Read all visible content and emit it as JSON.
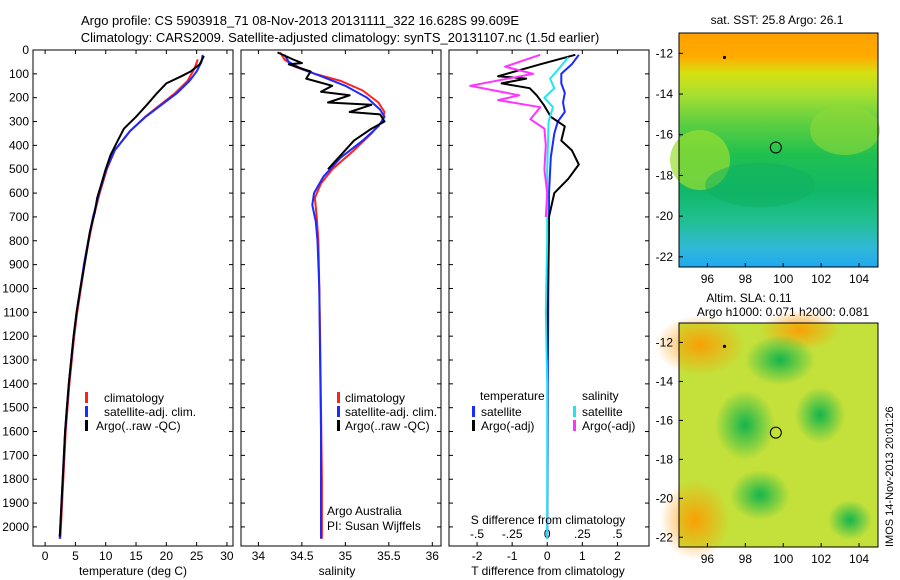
{
  "header": {
    "title_line1": "Argo profile: CS 5903918_71 08-Nov-2013 20131111_322 16.628S 99.609E",
    "title_line2": "Climatology: CARS2009. Satellite-adjusted climatology: synTS_20131107.nc (1.5d earlier)"
  },
  "colors": {
    "climatology": "#ff2020",
    "satellite_adj": "#1a2bff",
    "argo": "#000000",
    "satellite_salinity": "#20e6ef",
    "argo_salinity_adj": "#ff33ff"
  },
  "chart_data": [
    {
      "type": "line",
      "id": "temperature",
      "xlabel": "temperature (deg C)",
      "ylabel": "",
      "xlim": [
        -2,
        31
      ],
      "ylim": [
        2080,
        0
      ],
      "x_ticks": [
        0,
        5,
        10,
        15,
        20,
        25,
        30
      ],
      "y_ticks": [
        0,
        100,
        200,
        300,
        400,
        500,
        600,
        700,
        800,
        900,
        1000,
        1100,
        1200,
        1300,
        1400,
        1500,
        1600,
        1700,
        1800,
        1900,
        2000
      ],
      "legend": [
        "climatology",
        "satellite-adj. clim.",
        "Argo(..raw -QC)"
      ],
      "series": [
        {
          "name": "climatology",
          "color": "#ff2020",
          "points": [
            [
              25.2,
              40
            ],
            [
              24.6,
              80
            ],
            [
              23.5,
              130
            ],
            [
              21.5,
              180
            ],
            [
              19,
              230
            ],
            [
              16.5,
              280
            ],
            [
              14,
              340
            ],
            [
              11.5,
              420
            ],
            [
              10.2,
              500
            ],
            [
              9,
              600
            ],
            [
              8,
              700
            ],
            [
              7.2,
              800
            ],
            [
              6.5,
              900
            ],
            [
              5.9,
              1000
            ],
            [
              5.3,
              1100
            ],
            [
              4.8,
              1200
            ],
            [
              4.4,
              1300
            ],
            [
              4,
              1400
            ],
            [
              3.7,
              1500
            ],
            [
              3.4,
              1600
            ],
            [
              3.2,
              1700
            ],
            [
              3,
              1800
            ],
            [
              2.8,
              1900
            ],
            [
              2.6,
              2000
            ],
            [
              2.5,
              2050
            ]
          ]
        },
        {
          "name": "satellite-adj. clim.",
          "color": "#1a2bff",
          "points": [
            [
              26,
              20
            ],
            [
              25.8,
              50
            ],
            [
              25,
              90
            ],
            [
              23.8,
              130
            ],
            [
              21.8,
              180
            ],
            [
              19.2,
              230
            ],
            [
              16.6,
              280
            ],
            [
              14,
              340
            ],
            [
              11.5,
              420
            ],
            [
              10.1,
              500
            ],
            [
              8.9,
              600
            ],
            [
              7.9,
              700
            ],
            [
              7.1,
              800
            ],
            [
              6.4,
              900
            ],
            [
              5.8,
              1000
            ],
            [
              5.2,
              1100
            ],
            [
              4.7,
              1200
            ],
            [
              4.3,
              1300
            ],
            [
              3.9,
              1400
            ],
            [
              3.6,
              1500
            ],
            [
              3.3,
              1600
            ],
            [
              3.1,
              1700
            ],
            [
              2.9,
              1800
            ],
            [
              2.7,
              1900
            ],
            [
              2.5,
              2000
            ],
            [
              2.4,
              2050
            ]
          ]
        },
        {
          "name": "Argo(..raw -QC)",
          "color": "#000000",
          "points": [
            [
              26.2,
              25
            ],
            [
              25.5,
              60
            ],
            [
              24,
              90
            ],
            [
              22.5,
              110
            ],
            [
              20,
              140
            ],
            [
              18.5,
              180
            ],
            [
              16.8,
              230
            ],
            [
              15,
              280
            ],
            [
              13,
              330
            ],
            [
              12,
              380
            ],
            [
              10.8,
              440
            ],
            [
              10,
              500
            ],
            [
              9.3,
              560
            ],
            [
              8.6,
              620
            ],
            [
              8.2,
              680
            ],
            [
              7.4,
              760
            ],
            [
              6.5,
              900
            ],
            [
              5.8,
              1000
            ],
            [
              5.2,
              1100
            ],
            [
              4.7,
              1200
            ],
            [
              4.3,
              1300
            ],
            [
              3.9,
              1400
            ],
            [
              3.6,
              1500
            ],
            [
              3.3,
              1600
            ],
            [
              3.1,
              1700
            ],
            [
              2.9,
              1800
            ],
            [
              2.7,
              1900
            ],
            [
              2.5,
              2000
            ],
            [
              2.4,
              2040
            ]
          ]
        }
      ]
    },
    {
      "type": "line",
      "id": "salinity",
      "xlabel": "salinity",
      "xlim": [
        33.8,
        36.1
      ],
      "ylim": [
        2080,
        0
      ],
      "x_ticks": [
        34,
        34.5,
        35,
        35.5,
        36
      ],
      "legend": [
        "climatology",
        "satellite-adj. clim.",
        "Argo(..raw -QC)"
      ],
      "annotations": [
        "Argo Australia",
        "PI: Susan Wijffels"
      ],
      "series": [
        {
          "name": "climatology",
          "color": "#ff2020",
          "points": [
            [
              34.25,
              10
            ],
            [
              34.3,
              40
            ],
            [
              34.42,
              70
            ],
            [
              34.65,
              100
            ],
            [
              34.95,
              130
            ],
            [
              35.2,
              170
            ],
            [
              35.38,
              220
            ],
            [
              35.45,
              260
            ],
            [
              35.42,
              300
            ],
            [
              35.3,
              350
            ],
            [
              35.1,
              420
            ],
            [
              34.85,
              500
            ],
            [
              34.72,
              560
            ],
            [
              34.65,
              620
            ],
            [
              34.67,
              700
            ],
            [
              34.69,
              800
            ],
            [
              34.7,
              1000
            ],
            [
              34.71,
              1200
            ],
            [
              34.72,
              1500
            ],
            [
              34.73,
              1800
            ],
            [
              34.73,
              2050
            ]
          ]
        },
        {
          "name": "satellite-adj. clim.",
          "color": "#1a2bff",
          "points": [
            [
              34.3,
              20
            ],
            [
              34.35,
              50
            ],
            [
              34.5,
              80
            ],
            [
              34.72,
              110
            ],
            [
              35,
              150
            ],
            [
              35.25,
              200
            ],
            [
              35.4,
              250
            ],
            [
              35.45,
              280
            ],
            [
              35.38,
              320
            ],
            [
              35.2,
              380
            ],
            [
              34.95,
              450
            ],
            [
              34.75,
              530
            ],
            [
              34.64,
              600
            ],
            [
              34.62,
              650
            ],
            [
              34.66,
              720
            ],
            [
              34.68,
              800
            ],
            [
              34.7,
              1000
            ],
            [
              34.71,
              1300
            ],
            [
              34.72,
              1600
            ],
            [
              34.72,
              1900
            ],
            [
              34.72,
              2050
            ]
          ]
        },
        {
          "name": "Argo(..raw -QC)",
          "color": "#000000",
          "points": [
            [
              34.22,
              10
            ],
            [
              34.4,
              40
            ],
            [
              34.5,
              55
            ],
            [
              34.35,
              60
            ],
            [
              34.6,
              90
            ],
            [
              34.55,
              120
            ],
            [
              34.85,
              150
            ],
            [
              34.72,
              175
            ],
            [
              35.05,
              190
            ],
            [
              34.8,
              220
            ],
            [
              35.3,
              230
            ],
            [
              35.05,
              260
            ],
            [
              35.4,
              270
            ],
            [
              35.45,
              300
            ],
            [
              35.3,
              330
            ],
            [
              35.1,
              380
            ],
            [
              34.95,
              440
            ],
            [
              34.8,
              500
            ]
          ]
        }
      ]
    },
    {
      "type": "line",
      "id": "difference",
      "xlabel": "T difference from climatology",
      "x2label": "S difference from climatology",
      "xlim": [
        -2.8,
        2.9
      ],
      "x2lim": [
        -0.7,
        0.725
      ],
      "ylim": [
        2080,
        0
      ],
      "x_ticks": [
        -2,
        -1,
        0,
        1,
        2
      ],
      "x2_ticks": [
        -0.5,
        -0.25,
        0,
        0.25,
        0.5
      ],
      "legend_titles": [
        "temperature",
        "salinity"
      ],
      "legend_temperature": [
        "satellite",
        "Argo(-adj)"
      ],
      "legend_salinity": [
        "satellite",
        "Argo(-adj)"
      ],
      "series": [
        {
          "name": "temperature satellite",
          "color": "#1a2bff",
          "axis": "T",
          "points": [
            [
              0.9,
              20
            ],
            [
              0.7,
              60
            ],
            [
              0.4,
              100
            ],
            [
              0.4,
              140
            ],
            [
              0.5,
              180
            ],
            [
              0.45,
              220
            ],
            [
              0.5,
              260
            ],
            [
              0.3,
              300
            ],
            [
              0.2,
              350
            ],
            [
              0.1,
              450
            ],
            [
              0.05,
              600
            ],
            [
              0.05,
              800
            ],
            [
              0.03,
              1000
            ],
            [
              0.02,
              1300
            ],
            [
              0.01,
              1700
            ],
            [
              0,
              2050
            ]
          ]
        },
        {
          "name": "temperature Argo(-adj)",
          "color": "#000000",
          "axis": "T",
          "points": [
            [
              0.8,
              20
            ],
            [
              -0.2,
              60
            ],
            [
              -1.4,
              110
            ],
            [
              -0.6,
              120
            ],
            [
              -1.3,
              140
            ],
            [
              -0.5,
              160
            ],
            [
              -0.3,
              190
            ],
            [
              -0.1,
              230
            ],
            [
              0.1,
              280
            ],
            [
              0.5,
              320
            ],
            [
              0.4,
              380
            ],
            [
              0.7,
              420
            ],
            [
              0.9,
              480
            ],
            [
              0.6,
              540
            ],
            [
              0.2,
              600
            ],
            [
              0.05,
              700
            ],
            [
              0.02,
              900
            ],
            [
              0.01,
              1100
            ],
            [
              0,
              1300
            ]
          ]
        },
        {
          "name": "salinity satellite",
          "color": "#20e6ef",
          "axis": "S",
          "points": [
            [
              0.15,
              30
            ],
            [
              0.08,
              80
            ],
            [
              0.02,
              120
            ],
            [
              0.05,
              160
            ],
            [
              -0.02,
              200
            ],
            [
              0.04,
              240
            ],
            [
              0.01,
              300
            ],
            [
              0,
              500
            ],
            [
              0,
              800
            ],
            [
              -0.01,
              1100
            ],
            [
              0,
              1400
            ],
            [
              0,
              1700
            ],
            [
              0,
              2050
            ]
          ]
        },
        {
          "name": "salinity Argo(-adj)",
          "color": "#ff33ff",
          "axis": "S",
          "points": [
            [
              -0.05,
              20
            ],
            [
              -0.3,
              70
            ],
            [
              -0.1,
              100
            ],
            [
              -0.55,
              150
            ],
            [
              -0.2,
              190
            ],
            [
              -0.35,
              210
            ],
            [
              -0.05,
              240
            ],
            [
              -0.12,
              290
            ],
            [
              -0.02,
              330
            ],
            [
              -0.01,
              400
            ],
            [
              -0.02,
              500
            ],
            [
              0,
              600
            ],
            [
              -0.01,
              700
            ]
          ]
        }
      ]
    },
    {
      "type": "heatmap",
      "id": "sst-map",
      "title": "sat. SST: 25.8  Argo: 26.1",
      "xlim": [
        94.5,
        105
      ],
      "ylim": [
        -22.5,
        -11
      ],
      "x_ticks": [
        96,
        98,
        100,
        102,
        104
      ],
      "y_ticks": [
        -12,
        -14,
        -16,
        -18,
        -20,
        -22
      ],
      "profile_position": [
        99.609,
        -16.628
      ],
      "marker_position": [
        96.9,
        -12.2
      ]
    },
    {
      "type": "heatmap",
      "id": "sla-map",
      "title_line1": "Altim. SLA: 0.11",
      "title_line2": "Argo h1000: 0.071  h2000: 0.081",
      "xlim": [
        94.5,
        105
      ],
      "ylim": [
        -22.5,
        -11
      ],
      "x_ticks": [
        96,
        98,
        100,
        102,
        104
      ],
      "y_ticks": [
        -12,
        -14,
        -16,
        -18,
        -20,
        -22
      ],
      "profile_position": [
        99.609,
        -16.628
      ],
      "marker_position": [
        96.9,
        -12.2
      ]
    }
  ],
  "footer": {
    "timestamp": "IMOS 14-Nov-2013 20:01:26"
  }
}
